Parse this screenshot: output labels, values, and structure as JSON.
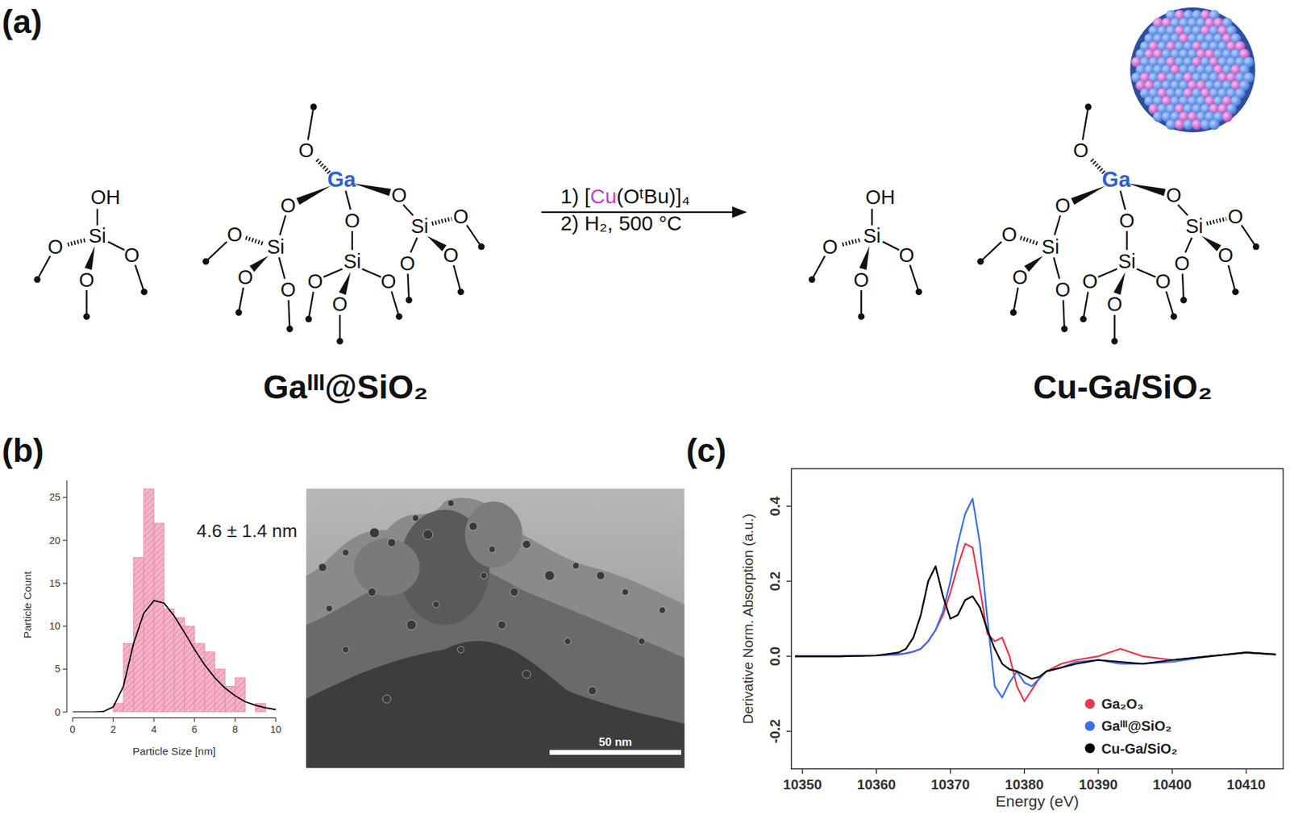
{
  "panel_labels": [
    "(a)",
    "(b)",
    "(c)"
  ],
  "scheme": {
    "atoms": {
      "oxygen": "O",
      "silicon": "Si",
      "hydroxyl": "OH",
      "gallium": "Ga"
    },
    "gallium_color": "#2f5fd8",
    "copper_color": "#c43fc4",
    "reagents": {
      "step1": {
        "prefix": "1) [",
        "metal": "Cu",
        "suffix": "(OᵗBu)]₄"
      },
      "step2": "2) H₂, 500 °C"
    },
    "labels": {
      "start": "Gaᴵᴵᴵ@SiO₂",
      "product": "Cu-Ga/SiO₂"
    }
  },
  "tem": {
    "scale_bar": "50 nm"
  },
  "chart_data": [
    {
      "type": "histogram",
      "x_label": "Particle Size [nm]",
      "y_label": "Particle Count",
      "annotation": "4.6 ± 1.4 nm",
      "bins": [
        2,
        2.5,
        3,
        3.5,
        4,
        4.5,
        5,
        5.5,
        6,
        6.5,
        7,
        7.5,
        8,
        8.5,
        9,
        9.5
      ],
      "counts": [
        1,
        8,
        18,
        26,
        22,
        12,
        11,
        10,
        8,
        7,
        5,
        3,
        4,
        0,
        1
      ],
      "color": "#f5b3c8",
      "fit_curve": {
        "x": [
          0,
          1,
          1.5,
          2,
          2.5,
          3,
          3.5,
          4,
          4.5,
          5,
          5.5,
          6,
          6.5,
          7,
          7.5,
          8,
          8.5,
          9,
          9.5,
          10
        ],
        "values": [
          0,
          0,
          0.05,
          0.6,
          3,
          8,
          11.5,
          13,
          12.7,
          11.2,
          9.3,
          7.3,
          5.5,
          4,
          2.8,
          1.9,
          1.2,
          0.8,
          0.5,
          0.3
        ],
        "color": "#000000"
      },
      "xlim": [
        0,
        10
      ],
      "ylim": [
        0,
        27
      ],
      "xticks": [
        0,
        2,
        4,
        6,
        8,
        10
      ],
      "yticks": [
        0,
        5,
        10,
        15,
        20,
        25
      ]
    },
    {
      "type": "line",
      "x_label": "Energy (eV)",
      "y_label": "Derivative Norm. Absorption (a.u.)",
      "x": [
        10349,
        10355,
        10360,
        10363,
        10364,
        10365,
        10366,
        10367,
        10368,
        10369,
        10370,
        10371,
        10372,
        10373,
        10374,
        10375,
        10376,
        10377,
        10378,
        10379,
        10380,
        10381,
        10382,
        10383,
        10385,
        10387,
        10390,
        10393,
        10396,
        10400,
        10405,
        10410,
        10414
      ],
      "series": [
        {
          "name": "Ga₂O₃",
          "color": "#e8384f",
          "values": [
            0,
            0,
            0.002,
            0.005,
            0.008,
            0.012,
            0.02,
            0.04,
            0.07,
            0.11,
            0.17,
            0.24,
            0.3,
            0.29,
            0.18,
            0.06,
            0.04,
            0.05,
            0.0,
            -0.08,
            -0.12,
            -0.09,
            -0.06,
            -0.04,
            -0.02,
            -0.01,
            0.0,
            0.02,
            0.0,
            -0.01,
            0.0,
            0.01,
            0.005
          ]
        },
        {
          "name": "Gaᴵᴵᴵ@SiO₂",
          "color": "#3a6fe8",
          "values": [
            0,
            0,
            0.002,
            0.005,
            0.008,
            0.012,
            0.02,
            0.04,
            0.07,
            0.12,
            0.2,
            0.3,
            0.38,
            0.42,
            0.3,
            0.1,
            -0.08,
            -0.11,
            -0.07,
            -0.04,
            -0.07,
            -0.08,
            -0.06,
            -0.04,
            -0.03,
            -0.015,
            -0.01,
            -0.02,
            -0.02,
            -0.015,
            0.0,
            0.01,
            0.005
          ]
        },
        {
          "name": "Cu-Ga/SiO₂",
          "color": "#000000",
          "values": [
            0,
            0,
            0.002,
            0.01,
            0.02,
            0.05,
            0.11,
            0.2,
            0.24,
            0.16,
            0.1,
            0.11,
            0.15,
            0.16,
            0.13,
            0.07,
            0.02,
            -0.02,
            -0.035,
            -0.04,
            -0.05,
            -0.06,
            -0.055,
            -0.04,
            -0.03,
            -0.02,
            -0.01,
            -0.015,
            -0.02,
            -0.01,
            0.0,
            0.01,
            0.005
          ]
        }
      ],
      "xlim": [
        10348.5,
        10415
      ],
      "ylim": [
        -0.3,
        0.5
      ],
      "xticks": [
        10350,
        10360,
        10370,
        10380,
        10390,
        10400,
        10410
      ],
      "yticks": [
        -0.2,
        {
          "value": 0,
          "label": "0.0"
        },
        0.2,
        0.4
      ],
      "legend": "lower right"
    }
  ]
}
